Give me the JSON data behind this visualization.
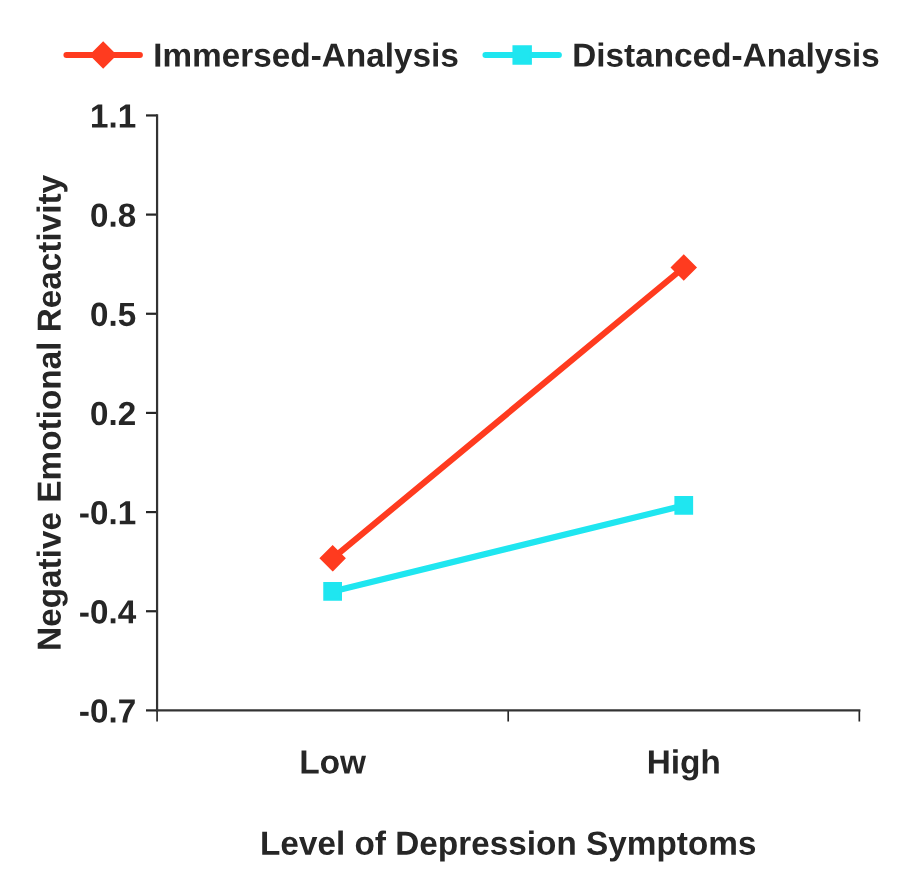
{
  "chart_data": {
    "type": "line",
    "xlabel": "Level of Depression Symptoms",
    "ylabel": "Negative Emotional Reactivity",
    "categories": [
      "Low",
      "High"
    ],
    "series": [
      {
        "name": "Immersed-Analysis",
        "color": "#ff3b1f",
        "marker": "diamond",
        "values": [
          -0.24,
          0.64
        ]
      },
      {
        "name": "Distanced-Analysis",
        "color": "#1fe6f0",
        "marker": "square",
        "values": [
          -0.34,
          -0.08
        ]
      }
    ],
    "ylim": [
      -0.7,
      1.1
    ],
    "yticks": [
      -0.7,
      -0.4,
      -0.1,
      0.2,
      0.5,
      0.8,
      1.1
    ],
    "grid": false,
    "legend": "top",
    "line_style": "solid"
  }
}
